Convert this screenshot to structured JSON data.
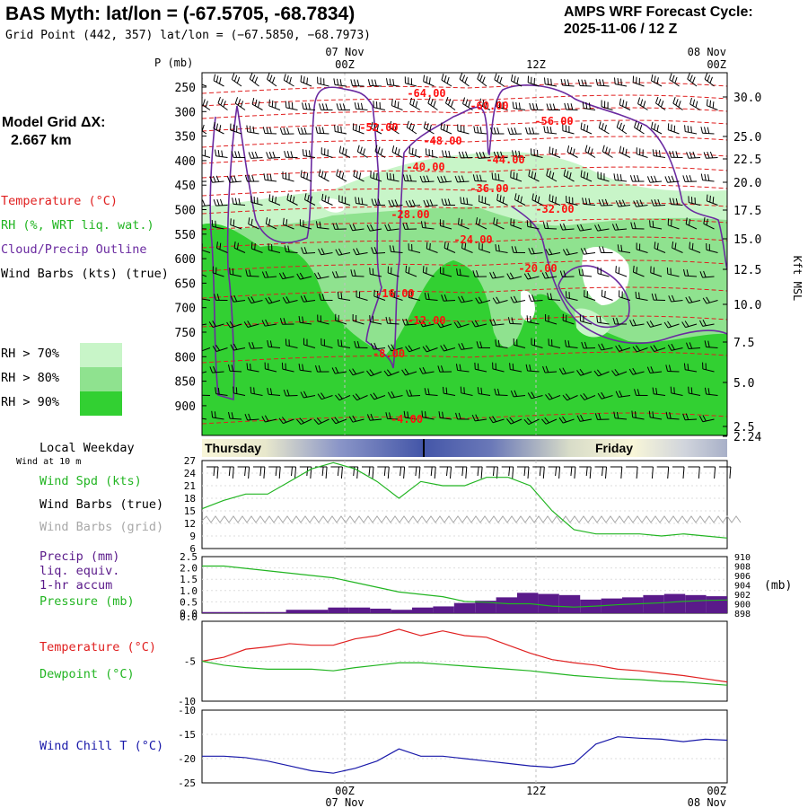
{
  "header": {
    "title": "BAS Myth:  lat/lon = (-67.5705, -68.7834)",
    "grid_point": "Grid Point (442, 357) lat/lon = (−67.5850, −68.7973)",
    "cycle_line1": "AMPS WRF Forecast Cycle:",
    "cycle_line2": "2025-11-06 / 12  Z"
  },
  "model_grid": {
    "label": "Model Grid ΔX:",
    "value": "2.667 km"
  },
  "time_axis": {
    "top_dates": [
      "07 Nov",
      "08 Nov"
    ],
    "ticks": [
      "00Z",
      "12Z",
      "00Z"
    ],
    "bottom_dates": [
      "07 Nov",
      "08 Nov"
    ]
  },
  "colors": {
    "temperature": "#e02020",
    "rh": "#22b522",
    "cloud": "#6a2aa0",
    "wind": "#000000",
    "wind_grid": "#a8a8a8",
    "precip": "#5a1a8a",
    "pressure": "#22b522",
    "dewpoint": "#22b522",
    "windchill": "#1a1aaa",
    "rh70": "#c8f5c8",
    "rh80": "#8fe28f",
    "rh90": "#32d032"
  },
  "main_panel": {
    "p_label": "P (mb)",
    "kft_label": "Kft MSL",
    "p_levels": [
      "250",
      "300",
      "350",
      "400",
      "450",
      "500",
      "550",
      "600",
      "650",
      "700",
      "750",
      "800",
      "850",
      "900"
    ],
    "kft_ticks": [
      "30.0",
      "25.0",
      "22.5",
      "20.0",
      "17.5",
      "15.0",
      "12.5",
      "10.0",
      "7.5",
      "5.0",
      "2.5",
      "2.24"
    ],
    "legend": {
      "temperature": "Temperature (°C)",
      "rh": "RH (%, WRT liq. wat.)",
      "cloud": "Cloud/Precip Outline",
      "wind": "Wind Barbs (kts) (true)"
    },
    "rh_legend": [
      "RH > 70%",
      "RH > 80%",
      "RH > 90%"
    ],
    "isotherm_labels": [
      "-64.00",
      "-60.00",
      "-56.00",
      "-52.00",
      "-48.00",
      "-44.00",
      "-40.00",
      "-36.00",
      "-32.00",
      "-28.00",
      "-24.00",
      "-20.00",
      "-16.00",
      "-12.00",
      "-8.00",
      "-4.00"
    ]
  },
  "day_band": {
    "label": "Local Weekday",
    "days": [
      "Thursday",
      "Friday"
    ]
  },
  "panels": {
    "wind": {
      "subtitle": "Wind at 10 m",
      "spd_label": "Wind Spd (kts)",
      "barbs_true": "Wind Barbs (true)",
      "barbs_grid": "Wind Barbs (grid)",
      "yticks": [
        "27",
        "24",
        "21",
        "18",
        "15",
        "12",
        "9",
        "6"
      ]
    },
    "precip": {
      "label1": "Precip (mm)",
      "label2": "liq. equiv.",
      "label3": "1-hr accum",
      "label4": "Pressure (mb)",
      "unit_right": "(mb)",
      "yticks_left": [
        "2.5",
        "2.0",
        "1.5",
        "1.0",
        "0.5",
        "0.0",
        "0.0"
      ],
      "yticks_right": [
        "910",
        "908",
        "906",
        "904",
        "902",
        "900",
        "898"
      ]
    },
    "temp": {
      "label_t": "Temperature (°C)",
      "label_td": "Dewpoint (°C)",
      "yticks": [
        "-5",
        "-10"
      ]
    },
    "windchill": {
      "label": "Wind Chill T (°C)",
      "yticks": [
        "-10",
        "-15",
        "-20",
        "-25"
      ]
    }
  },
  "chart_data": [
    {
      "type": "line",
      "title": "Wind Spd (kts)",
      "x_hours": [
        0,
        2,
        4,
        6,
        8,
        10,
        12,
        14,
        16,
        18,
        20,
        22,
        24,
        26,
        28,
        30,
        32,
        34,
        36,
        38,
        40,
        42,
        44,
        46,
        48
      ],
      "series": [
        {
          "name": "Wind Spd (kts)",
          "values": [
            15.5,
            17.5,
            19,
            19,
            22,
            25,
            26.5,
            25,
            22,
            18,
            22,
            21,
            21,
            23,
            23,
            21,
            15,
            10.5,
            9.5,
            9.5,
            9.5,
            9,
            9.5,
            9,
            8.5
          ]
        }
      ],
      "ylim": [
        6,
        27
      ]
    },
    {
      "type": "bar",
      "title": "Precip (mm) liq. equiv. 1-hr accum",
      "x_hours": [
        0,
        2,
        4,
        6,
        8,
        10,
        12,
        14,
        16,
        18,
        20,
        22,
        24,
        26,
        28,
        30,
        32,
        34,
        36,
        38,
        40,
        42,
        44,
        46,
        48
      ],
      "series": [
        {
          "name": "Precip (mm)",
          "values": [
            0.05,
            0.05,
            0.05,
            0.05,
            0.15,
            0.15,
            0.25,
            0.25,
            0.2,
            0.15,
            0.25,
            0.3,
            0.45,
            0.55,
            0.7,
            0.9,
            0.85,
            0.8,
            0.6,
            0.65,
            0.7,
            0.8,
            0.85,
            0.8,
            0.75
          ]
        },
        {
          "name": "Pressure (mb)",
          "values": [
            908,
            908,
            907.5,
            907,
            906.5,
            906,
            905.5,
            904.5,
            903.5,
            902.5,
            902,
            901.5,
            900.5,
            900.3,
            900,
            900,
            899.5,
            899.3,
            899.5,
            899.8,
            900,
            900.2,
            900.5,
            900.7,
            900.8
          ]
        }
      ],
      "ylim": [
        0,
        2.5
      ],
      "y2lim": [
        898,
        910
      ]
    },
    {
      "type": "line",
      "title": "Temperature / Dewpoint (°C)",
      "x_hours": [
        0,
        2,
        4,
        6,
        8,
        10,
        12,
        14,
        16,
        18,
        20,
        22,
        24,
        26,
        28,
        30,
        32,
        34,
        36,
        38,
        40,
        42,
        44,
        46,
        48
      ],
      "series": [
        {
          "name": "Temperature (°C)",
          "values": [
            -5,
            -4.5,
            -3.5,
            -3.2,
            -2.8,
            -3,
            -3,
            -2.2,
            -1.8,
            -1,
            -1.8,
            -1.2,
            -1.8,
            -2,
            -3,
            -4,
            -4.8,
            -5.2,
            -5.5,
            -6,
            -6.2,
            -6.5,
            -6.8,
            -7.2,
            -7.6
          ]
        },
        {
          "name": "Dewpoint (°C)",
          "values": [
            -5,
            -5.5,
            -5.8,
            -6,
            -6,
            -6,
            -6.2,
            -5.8,
            -5.5,
            -5.2,
            -5.2,
            -5.4,
            -5.6,
            -5.8,
            -6,
            -6.2,
            -6.5,
            -6.8,
            -7,
            -7.2,
            -7.3,
            -7.5,
            -7.6,
            -7.8,
            -8
          ]
        }
      ],
      "ylim": [
        -10,
        0
      ]
    },
    {
      "type": "line",
      "title": "Wind Chill T (°C)",
      "x_hours": [
        0,
        2,
        4,
        6,
        8,
        10,
        12,
        14,
        16,
        18,
        20,
        22,
        24,
        26,
        28,
        30,
        32,
        34,
        36,
        38,
        40,
        42,
        44,
        46,
        48
      ],
      "series": [
        {
          "name": "Wind Chill T (°C)",
          "values": [
            -19.5,
            -19.5,
            -19.8,
            -20.5,
            -21.5,
            -22.5,
            -23,
            -22,
            -20.5,
            -18,
            -19.5,
            -19.5,
            -20,
            -20.5,
            -21,
            -21.5,
            -21.8,
            -21,
            -17,
            -15.5,
            -15.8,
            -16,
            -16.5,
            -16,
            -16.2
          ]
        }
      ],
      "ylim": [
        -25,
        -10
      ]
    }
  ]
}
